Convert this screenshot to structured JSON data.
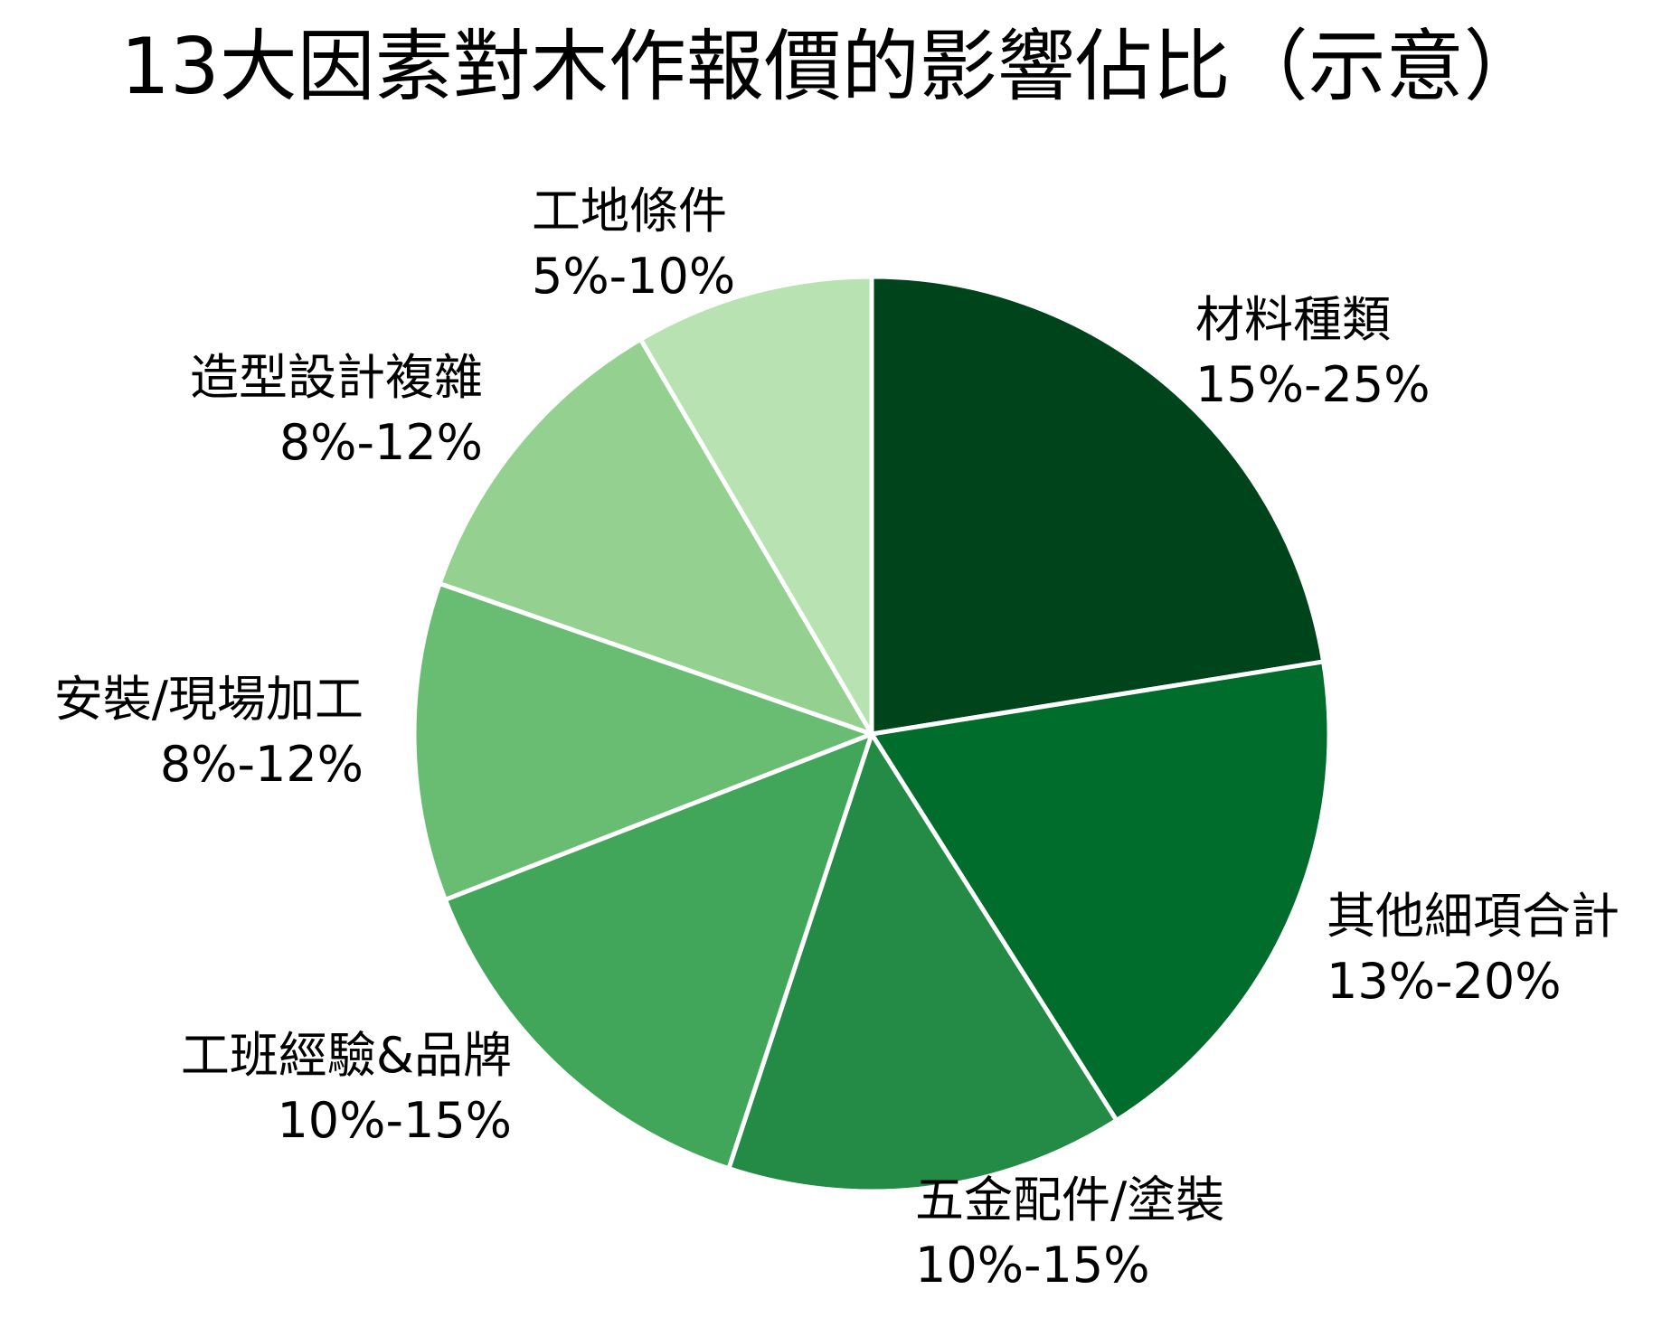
{
  "chart_data": {
    "type": "pie",
    "title": "13大因素對木作報價的影響佔比（示意）",
    "start_angle_deg": 0,
    "direction": "clockwise",
    "slices": [
      {
        "label": "材料種類",
        "range": "15%-25%",
        "value": 20,
        "color": "#00441b"
      },
      {
        "label": "其他細項合計",
        "range": "13%-20%",
        "value": 16.5,
        "color": "#006d2c"
      },
      {
        "label": "五金配件/塗裝",
        "range": "10%-15%",
        "value": 12.5,
        "color": "#238b45"
      },
      {
        "label": "工班經驗&品牌",
        "range": "10%-15%",
        "value": 12.5,
        "color": "#41a55a"
      },
      {
        "label": "安裝/現場加工",
        "range": "8%-12%",
        "value": 10,
        "color": "#68bd72"
      },
      {
        "label": "造型設計複雜",
        "range": "8%-12%",
        "value": 10,
        "color": "#94d190"
      },
      {
        "label": "工地條件",
        "range": "5%-10%",
        "value": 7.5,
        "color": "#b8e2b2"
      }
    ],
    "separator_color": "#ffffff"
  }
}
